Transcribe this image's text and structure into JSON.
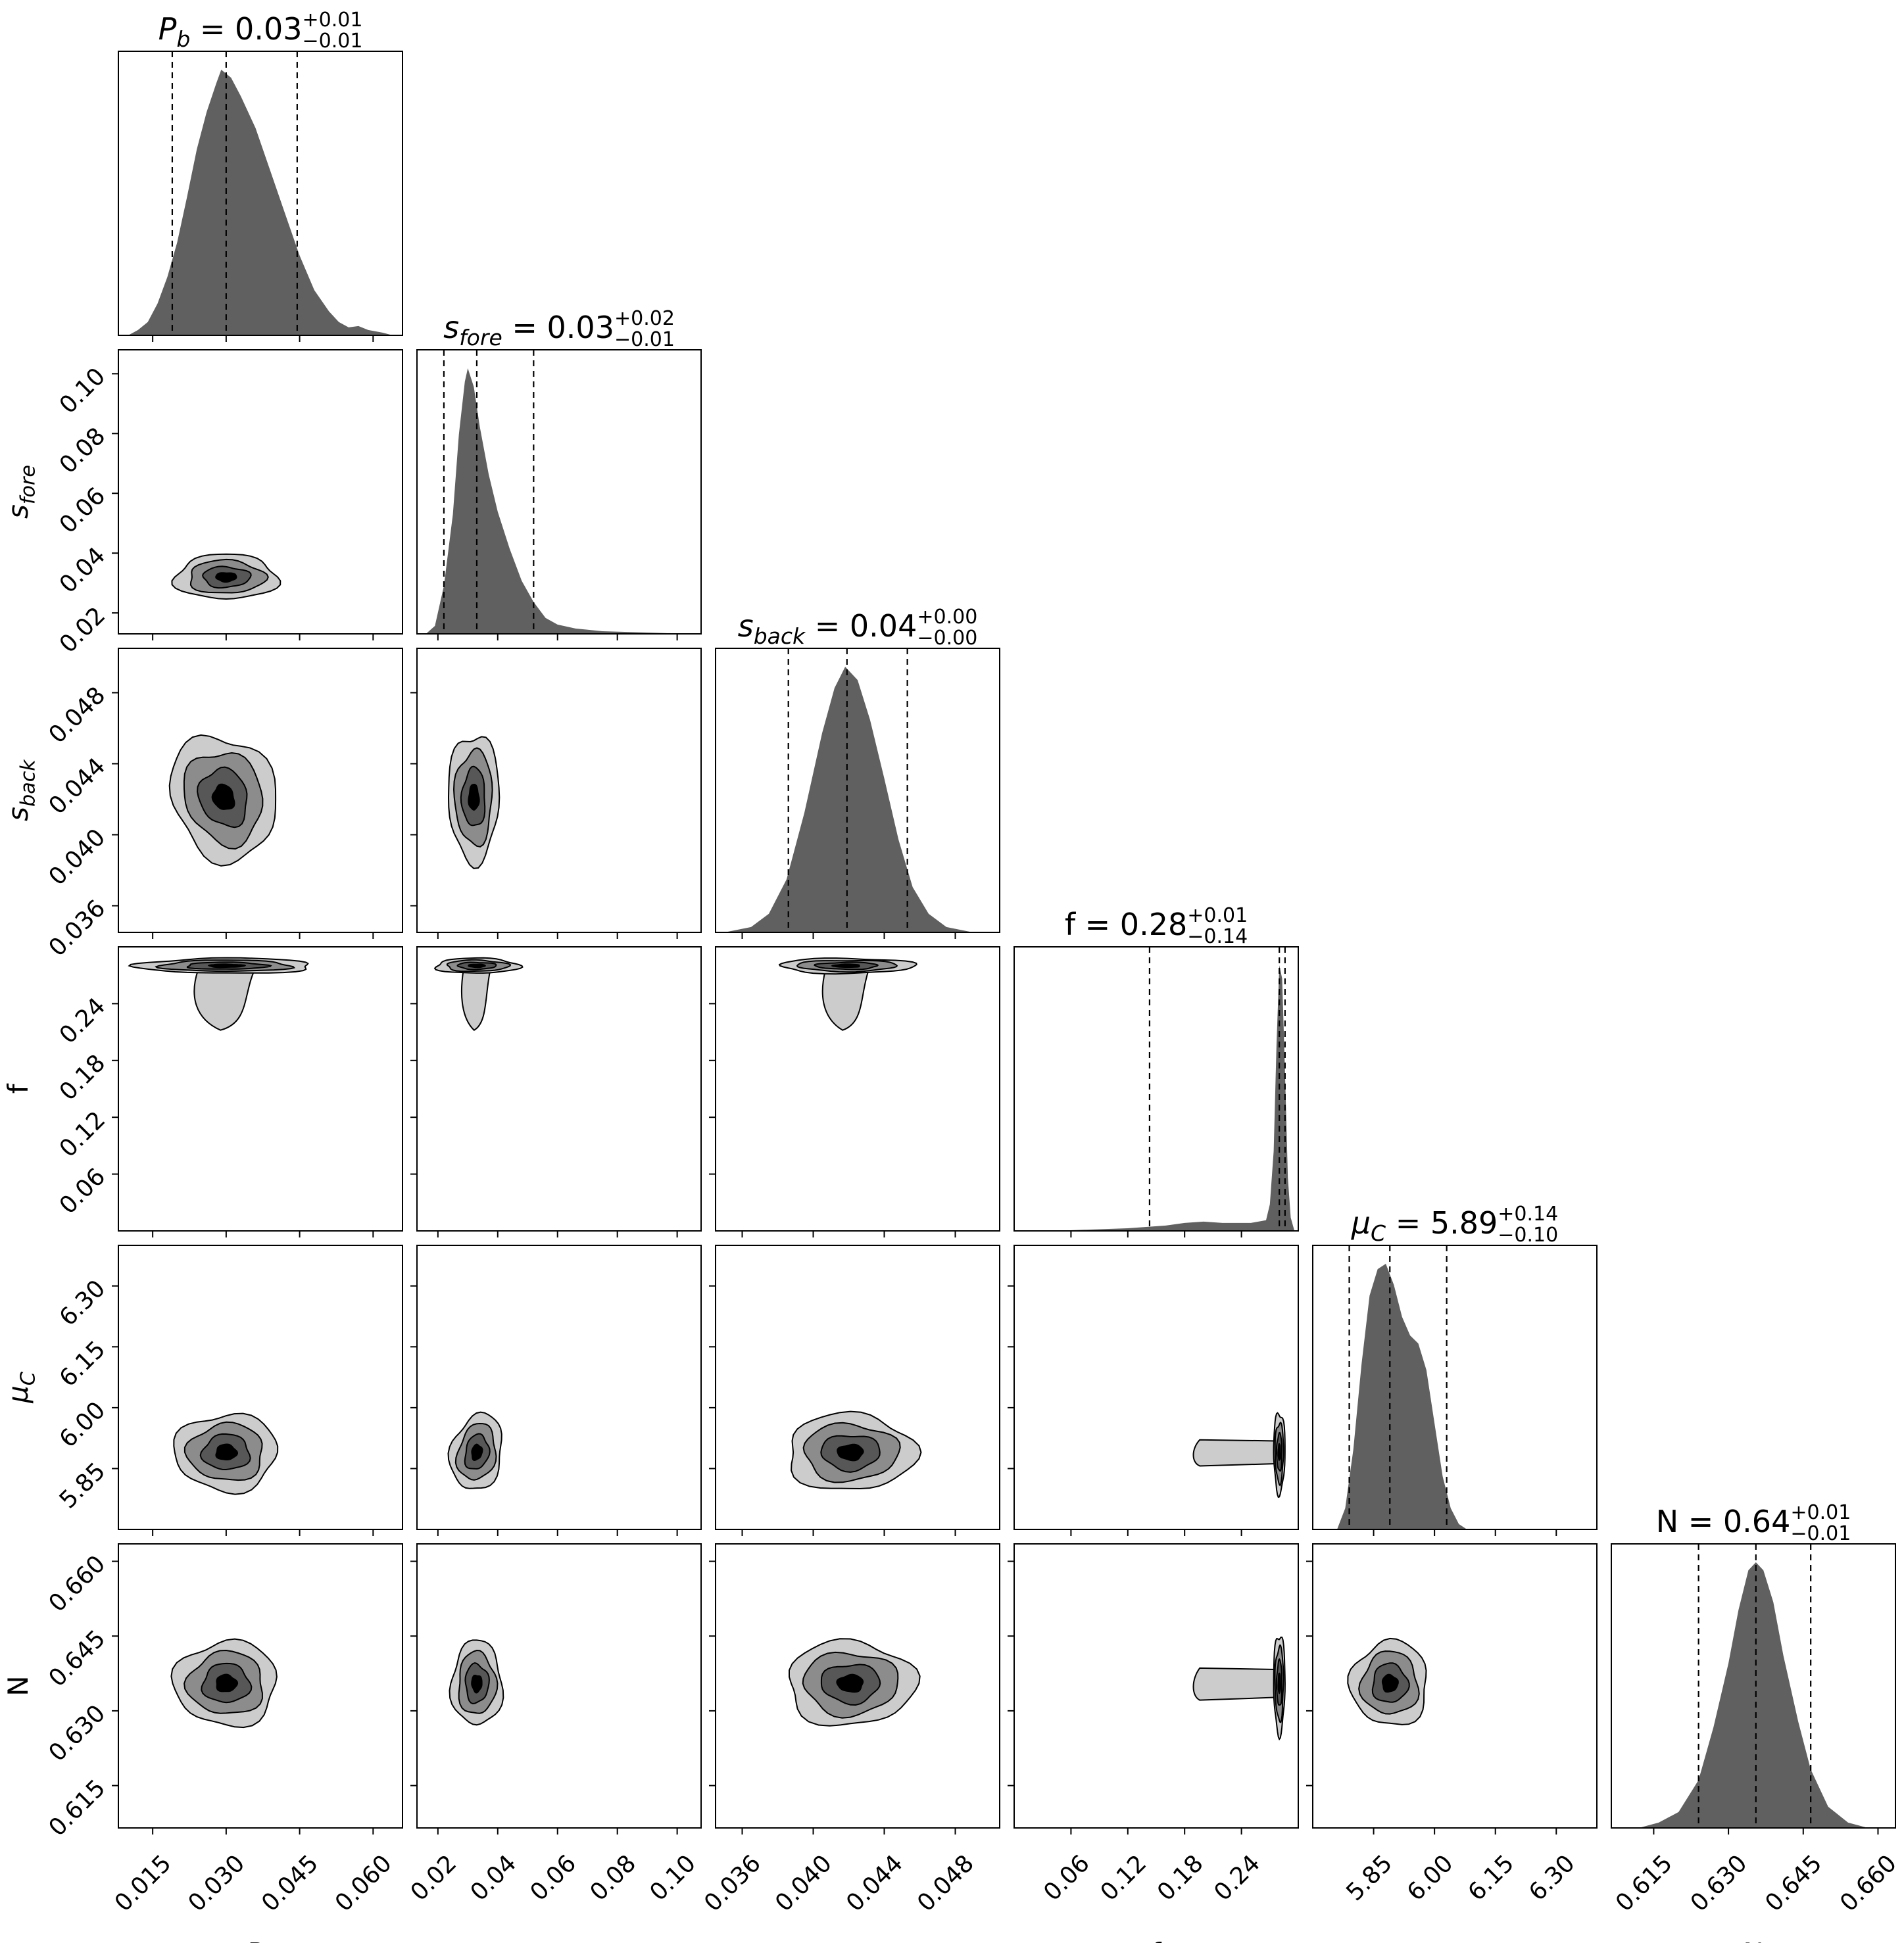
{
  "chart_data": {
    "type": "corner",
    "parameters": [
      {
        "key": "Pb",
        "label": "P",
        "label_sub": "b",
        "title": "P_b = 0.03 +0.01 -0.01",
        "title_value": "0.03",
        "title_plus": "+0.01",
        "title_minus": "−0.01",
        "range": [
          0.008,
          0.066
        ],
        "ticks": [
          "0.015",
          "0.030",
          "0.045",
          "0.060"
        ],
        "median": 0.03,
        "q16": 0.019,
        "q84": 0.0445,
        "hist_shape": [
          [
            0.01,
            0.0
          ],
          [
            0.012,
            0.02
          ],
          [
            0.014,
            0.05
          ],
          [
            0.016,
            0.12
          ],
          [
            0.018,
            0.22
          ],
          [
            0.02,
            0.35
          ],
          [
            0.022,
            0.52
          ],
          [
            0.024,
            0.7
          ],
          [
            0.026,
            0.84
          ],
          [
            0.028,
            0.95
          ],
          [
            0.029,
            1.0
          ],
          [
            0.031,
            0.97
          ],
          [
            0.033,
            0.9
          ],
          [
            0.036,
            0.78
          ],
          [
            0.039,
            0.62
          ],
          [
            0.042,
            0.46
          ],
          [
            0.045,
            0.3
          ],
          [
            0.048,
            0.17
          ],
          [
            0.051,
            0.09
          ],
          [
            0.053,
            0.05
          ],
          [
            0.055,
            0.03
          ],
          [
            0.057,
            0.035
          ],
          [
            0.059,
            0.02
          ],
          [
            0.062,
            0.01
          ],
          [
            0.064,
            0.0
          ]
        ]
      },
      {
        "key": "sfore",
        "label": "s",
        "label_sub": "fore",
        "title": "s_fore = 0.03 +0.02 -0.01",
        "title_value": "0.03",
        "title_plus": "+0.02",
        "title_minus": "−0.01",
        "range": [
          0.013,
          0.108
        ],
        "ticks": [
          "0.02",
          "0.04",
          "0.06",
          "0.08",
          "0.10"
        ],
        "median": 0.033,
        "q16": 0.022,
        "q84": 0.052,
        "hist_shape": [
          [
            0.016,
            0.0
          ],
          [
            0.019,
            0.03
          ],
          [
            0.022,
            0.18
          ],
          [
            0.025,
            0.45
          ],
          [
            0.027,
            0.75
          ],
          [
            0.029,
            0.95
          ],
          [
            0.03,
            1.0
          ],
          [
            0.032,
            0.93
          ],
          [
            0.034,
            0.78
          ],
          [
            0.037,
            0.6
          ],
          [
            0.04,
            0.46
          ],
          [
            0.044,
            0.32
          ],
          [
            0.048,
            0.2
          ],
          [
            0.052,
            0.12
          ],
          [
            0.056,
            0.06
          ],
          [
            0.06,
            0.035
          ],
          [
            0.066,
            0.02
          ],
          [
            0.075,
            0.01
          ],
          [
            0.09,
            0.005
          ],
          [
            0.105,
            0.0
          ]
        ]
      },
      {
        "key": "sback",
        "label": "s",
        "label_sub": "back",
        "title": "s_back = 0.04 +0.00 -0.00",
        "title_value": "0.04",
        "title_plus": "+0.00",
        "title_minus": "−0.00",
        "range": [
          0.0345,
          0.0505
        ],
        "ticks": [
          "0.036",
          "0.040",
          "0.044",
          "0.048"
        ],
        "median": 0.0419,
        "q16": 0.0386,
        "q84": 0.0453,
        "hist_shape": [
          [
            0.035,
            0.0
          ],
          [
            0.0365,
            0.02
          ],
          [
            0.0375,
            0.07
          ],
          [
            0.0385,
            0.2
          ],
          [
            0.0395,
            0.45
          ],
          [
            0.0405,
            0.75
          ],
          [
            0.0412,
            0.92
          ],
          [
            0.0418,
            1.0
          ],
          [
            0.0425,
            0.95
          ],
          [
            0.0432,
            0.8
          ],
          [
            0.044,
            0.58
          ],
          [
            0.0448,
            0.35
          ],
          [
            0.0456,
            0.17
          ],
          [
            0.0465,
            0.07
          ],
          [
            0.0475,
            0.02
          ],
          [
            0.049,
            0.0
          ]
        ]
      },
      {
        "key": "f",
        "label": "f",
        "label_sub": "",
        "title": "f = 0.28 +0.01 -0.14",
        "title_value": "0.28",
        "title_plus": "+0.01",
        "title_minus": "−0.14",
        "range": [
          0.0,
          0.3
        ],
        "ticks": [
          "0.06",
          "0.12",
          "0.18",
          "0.24"
        ],
        "median": 0.28,
        "q16": 0.143,
        "q84": 0.286,
        "hist_shape": [
          [
            0.04,
            0.0
          ],
          [
            0.08,
            0.005
          ],
          [
            0.12,
            0.01
          ],
          [
            0.16,
            0.02
          ],
          [
            0.18,
            0.03
          ],
          [
            0.2,
            0.035
          ],
          [
            0.22,
            0.03
          ],
          [
            0.25,
            0.03
          ],
          [
            0.266,
            0.04
          ],
          [
            0.27,
            0.1
          ],
          [
            0.274,
            0.3
          ],
          [
            0.277,
            0.7
          ],
          [
            0.28,
            1.0
          ],
          [
            0.283,
            0.95
          ],
          [
            0.286,
            0.6
          ],
          [
            0.289,
            0.2
          ],
          [
            0.292,
            0.05
          ],
          [
            0.296,
            0.0
          ]
        ]
      },
      {
        "key": "muC",
        "label": "μ",
        "label_sub": "C",
        "title": "μ_C = 5.89 +0.14 -0.10",
        "title_value": "5.89",
        "title_plus": "+0.14",
        "title_minus": "−0.10",
        "range": [
          5.7,
          6.4
        ],
        "ticks": [
          "5.85",
          "6.00",
          "6.15",
          "6.30"
        ],
        "median": 5.89,
        "q16": 5.79,
        "q84": 6.03,
        "hist_shape": [
          [
            5.76,
            0.0
          ],
          [
            5.78,
            0.08
          ],
          [
            5.8,
            0.3
          ],
          [
            5.82,
            0.62
          ],
          [
            5.84,
            0.88
          ],
          [
            5.86,
            0.98
          ],
          [
            5.88,
            1.0
          ],
          [
            5.9,
            0.92
          ],
          [
            5.92,
            0.8
          ],
          [
            5.94,
            0.73
          ],
          [
            5.96,
            0.7
          ],
          [
            5.98,
            0.6
          ],
          [
            6.0,
            0.4
          ],
          [
            6.02,
            0.2
          ],
          [
            6.04,
            0.08
          ],
          [
            6.06,
            0.02
          ],
          [
            6.08,
            0.0
          ]
        ]
      },
      {
        "key": "N",
        "label": "N",
        "label_sub": "",
        "title": "N = 0.64 +0.01 -0.01",
        "title_value": "0.64",
        "title_plus": "+0.01",
        "title_minus": "−0.01",
        "range": [
          0.6065,
          0.6635
        ],
        "ticks": [
          "0.615",
          "0.630",
          "0.645",
          "0.660"
        ],
        "median": 0.6355,
        "q16": 0.624,
        "q84": 0.6465,
        "hist_shape": [
          [
            0.612,
            0.0
          ],
          [
            0.616,
            0.02
          ],
          [
            0.62,
            0.06
          ],
          [
            0.624,
            0.18
          ],
          [
            0.627,
            0.38
          ],
          [
            0.63,
            0.62
          ],
          [
            0.632,
            0.82
          ],
          [
            0.634,
            0.97
          ],
          [
            0.6355,
            1.0
          ],
          [
            0.637,
            0.97
          ],
          [
            0.639,
            0.85
          ],
          [
            0.641,
            0.65
          ],
          [
            0.644,
            0.4
          ],
          [
            0.6465,
            0.22
          ],
          [
            0.65,
            0.08
          ],
          [
            0.654,
            0.02
          ],
          [
            0.658,
            0.0
          ]
        ]
      }
    ],
    "contours": [
      {
        "row": 1,
        "col": 0,
        "center": [
          0.03,
          0.032
        ],
        "spread": [
          0.0105,
          0.0075
        ],
        "tilt": 0,
        "tail": null
      },
      {
        "row": 2,
        "col": 0,
        "center": [
          0.0295,
          0.0421
        ],
        "spread": [
          0.0105,
          0.0036
        ],
        "tilt": -0.35,
        "tail": null
      },
      {
        "row": 2,
        "col": 1,
        "center": [
          0.032,
          0.0421
        ],
        "spread": [
          0.0085,
          0.0036
        ],
        "tilt": 0,
        "tail": null
      },
      {
        "row": 3,
        "col": 0,
        "center": [
          0.03,
          0.28
        ],
        "spread": [
          0.018,
          0.008
        ],
        "tilt": 0,
        "tail": "down"
      },
      {
        "row": 3,
        "col": 1,
        "center": [
          0.033,
          0.28
        ],
        "spread": [
          0.014,
          0.008
        ],
        "tilt": 0,
        "tail": "down"
      },
      {
        "row": 3,
        "col": 2,
        "center": [
          0.0419,
          0.28
        ],
        "spread": [
          0.0038,
          0.008
        ],
        "tilt": 0,
        "tail": "down"
      },
      {
        "row": 4,
        "col": 0,
        "center": [
          0.03,
          5.89
        ],
        "spread": [
          0.0105,
          0.095
        ],
        "tilt": 0,
        "tail": null
      },
      {
        "row": 4,
        "col": 1,
        "center": [
          0.033,
          5.89
        ],
        "spread": [
          0.0085,
          0.095
        ],
        "tilt": 0.2,
        "tail": null
      },
      {
        "row": 4,
        "col": 2,
        "center": [
          0.0421,
          5.89
        ],
        "spread": [
          0.0036,
          0.095
        ],
        "tilt": 0,
        "tail": null
      },
      {
        "row": 4,
        "col": 3,
        "center": [
          0.28,
          5.89
        ],
        "spread": [
          0.006,
          0.1
        ],
        "tilt": 0,
        "tail": "left"
      },
      {
        "row": 5,
        "col": 0,
        "center": [
          0.03,
          0.6355
        ],
        "spread": [
          0.0105,
          0.0085
        ],
        "tilt": 0,
        "tail": null
      },
      {
        "row": 5,
        "col": 1,
        "center": [
          0.033,
          0.6355
        ],
        "spread": [
          0.0085,
          0.0085
        ],
        "tilt": 0,
        "tail": null
      },
      {
        "row": 5,
        "col": 2,
        "center": [
          0.0421,
          0.6355
        ],
        "spread": [
          0.0036,
          0.0085
        ],
        "tilt": 0,
        "tail": null
      },
      {
        "row": 5,
        "col": 3,
        "center": [
          0.28,
          0.6355
        ],
        "spread": [
          0.006,
          0.01
        ],
        "tilt": 0,
        "tail": "left"
      },
      {
        "row": 5,
        "col": 4,
        "center": [
          5.89,
          0.6355
        ],
        "spread": [
          0.095,
          0.0085
        ],
        "tilt": 0,
        "tail": null
      }
    ],
    "contour_levels": [
      "#000000",
      "#575757",
      "#8c8c8c",
      "#cccccc"
    ],
    "histogram_color": "#606060",
    "quantile_line_style": "dashed"
  }
}
